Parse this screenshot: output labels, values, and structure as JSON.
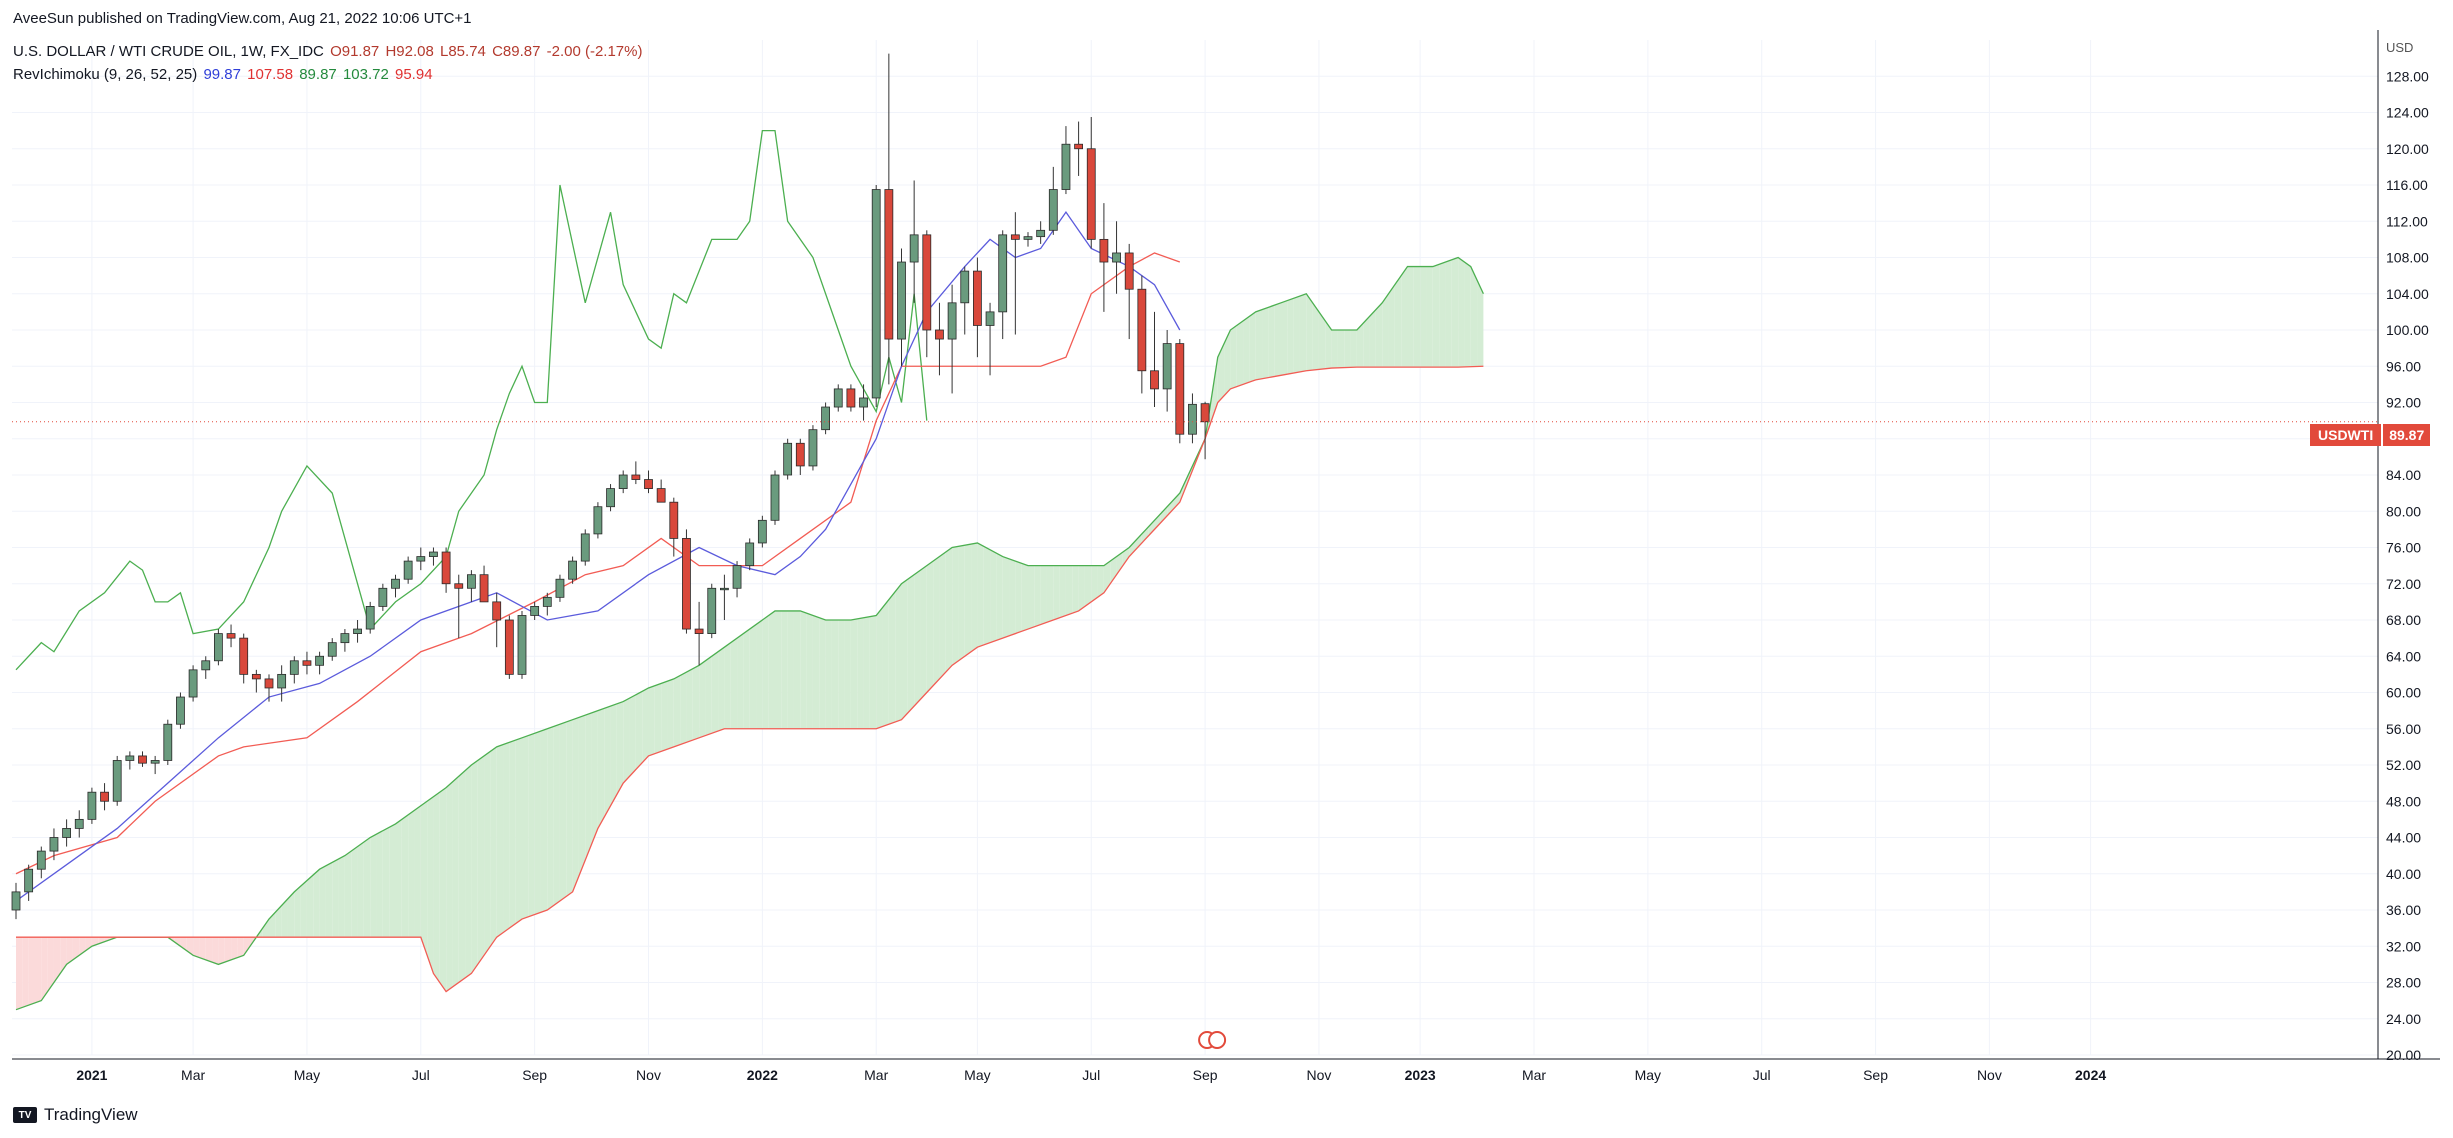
{
  "header": {
    "publish_line": "AveeSun published on TradingView.com, Aug 21, 2022 10:06 UTC+1",
    "symbol": "U.S. DOLLAR / WTI CRUDE OIL, 1W, FX_IDC",
    "open": "O91.87",
    "high": "H92.08",
    "low": "L85.74",
    "close": "C89.87",
    "change": "-2.00 (-2.17%)",
    "indicator_name": "RevIchimoku (9, 26, 52, 25)",
    "ind_v1": "99.87",
    "ind_v2": "107.58",
    "ind_v3": "89.87",
    "ind_v4": "103.72",
    "ind_v5": "95.94"
  },
  "price_axis": {
    "currency": "USD",
    "last_label": "USDWTI",
    "last_value": "89.87"
  },
  "footer": {
    "brand": "TradingView",
    "logo_text": "TV"
  },
  "colors": {
    "candle_up": "#6a9b7e",
    "candle_down": "#d9483b",
    "tenkan": "#5b5bdc",
    "kijun": "#f25c54",
    "span_a": "#4caf50",
    "cloud_bull": "#d4ecd4",
    "cloud_bear": "#fbdada",
    "grid": "#f0f3fa"
  },
  "chart_data": {
    "type": "candlestick",
    "title": "",
    "ylim": [
      20,
      132
    ],
    "y_ticks": [
      20,
      24,
      28,
      32,
      36,
      40,
      44,
      48,
      52,
      56,
      60,
      64,
      68,
      72,
      76,
      80,
      84,
      88,
      92,
      96,
      100,
      104,
      108,
      112,
      116,
      120,
      124,
      128
    ],
    "x_ticks": [
      {
        "label": "2021",
        "week": 6
      },
      {
        "label": "Mar",
        "week": 14
      },
      {
        "label": "May",
        "week": 23
      },
      {
        "label": "Jul",
        "week": 32
      },
      {
        "label": "Sep",
        "week": 41
      },
      {
        "label": "Nov",
        "week": 50
      },
      {
        "label": "2022",
        "week": 59
      },
      {
        "label": "Mar",
        "week": 68
      },
      {
        "label": "May",
        "week": 76
      },
      {
        "label": "Jul",
        "week": 85
      },
      {
        "label": "Sep",
        "week": 94
      },
      {
        "label": "Nov",
        "week": 103
      },
      {
        "label": "2023",
        "week": 111
      },
      {
        "label": "Mar",
        "week": 120
      },
      {
        "label": "May",
        "week": 129
      },
      {
        "label": "Jul",
        "week": 138
      },
      {
        "label": "Sep",
        "week": 147
      },
      {
        "label": "Nov",
        "week": 156
      },
      {
        "label": "2024",
        "week": 164
      }
    ],
    "candles": [
      [
        36,
        39,
        35,
        38
      ],
      [
        38,
        41,
        37,
        40.5
      ],
      [
        40.5,
        43,
        39.5,
        42.5
      ],
      [
        42.5,
        45,
        41.5,
        44
      ],
      [
        44,
        46,
        43,
        45
      ],
      [
        45,
        47,
        44,
        46
      ],
      [
        46,
        49.5,
        45.5,
        49
      ],
      [
        49,
        50,
        47,
        48
      ],
      [
        48,
        53,
        47.5,
        52.5
      ],
      [
        52.5,
        53.5,
        51.5,
        53
      ],
      [
        53,
        53.5,
        51.8,
        52.2
      ],
      [
        52.2,
        53,
        51,
        52.5
      ],
      [
        52.5,
        57,
        52,
        56.5
      ],
      [
        56.5,
        60,
        56,
        59.5
      ],
      [
        59.5,
        63,
        59,
        62.5
      ],
      [
        62.5,
        64,
        61.5,
        63.5
      ],
      [
        63.5,
        67,
        63,
        66.5
      ],
      [
        66.5,
        67.5,
        65,
        66
      ],
      [
        66,
        66.5,
        61,
        62
      ],
      [
        62,
        62.5,
        60,
        61.5
      ],
      [
        61.5,
        62,
        59,
        60.5
      ],
      [
        60.5,
        63,
        59,
        62
      ],
      [
        62,
        64,
        61,
        63.5
      ],
      [
        63.5,
        64.5,
        62,
        63
      ],
      [
        63,
        64.5,
        62,
        64
      ],
      [
        64,
        66,
        63.5,
        65.5
      ],
      [
        65.5,
        67,
        64.5,
        66.5
      ],
      [
        66.5,
        68,
        65.5,
        67
      ],
      [
        67,
        70,
        66.5,
        69.5
      ],
      [
        69.5,
        72,
        69,
        71.5
      ],
      [
        71.5,
        73,
        70.5,
        72.5
      ],
      [
        72.5,
        75,
        72,
        74.5
      ],
      [
        74.5,
        76,
        73.5,
        75
      ],
      [
        75,
        76,
        74,
        75.5
      ],
      [
        75.5,
        76,
        71,
        72
      ],
      [
        72,
        73,
        66,
        71.5
      ],
      [
        71.5,
        73.5,
        70,
        73
      ],
      [
        73,
        74,
        70,
        70
      ],
      [
        70,
        71,
        65,
        68
      ],
      [
        68,
        68.5,
        61.5,
        62
      ],
      [
        62,
        69,
        61.5,
        68.5
      ],
      [
        68.5,
        70,
        68,
        69.5
      ],
      [
        69.5,
        71,
        68.5,
        70.5
      ],
      [
        70.5,
        73,
        70,
        72.5
      ],
      [
        72.5,
        75,
        72,
        74.5
      ],
      [
        74.5,
        78,
        74,
        77.5
      ],
      [
        77.5,
        81,
        77,
        80.5
      ],
      [
        80.5,
        83,
        80,
        82.5
      ],
      [
        82.5,
        84.5,
        82,
        84
      ],
      [
        84,
        85.5,
        83,
        83.5
      ],
      [
        83.5,
        84.5,
        82,
        82.5
      ],
      [
        82.5,
        83.5,
        81,
        81
      ],
      [
        81,
        81.5,
        75,
        77
      ],
      [
        77,
        78,
        66.5,
        67
      ],
      [
        67,
        70,
        63,
        66.5
      ],
      [
        66.5,
        72,
        66,
        71.5
      ],
      [
        71.5,
        73,
        68,
        71.5
      ],
      [
        71.5,
        74.5,
        70.5,
        74
      ],
      [
        74,
        77,
        73.5,
        76.5
      ],
      [
        76.5,
        79.5,
        76,
        79
      ],
      [
        79,
        84.5,
        78.5,
        84
      ],
      [
        84,
        88,
        83.5,
        87.5
      ],
      [
        87.5,
        88,
        84,
        85
      ],
      [
        85,
        89.5,
        84.5,
        89
      ],
      [
        89,
        92,
        88.5,
        91.5
      ],
      [
        91.5,
        94,
        91,
        93.5
      ],
      [
        93.5,
        94,
        91,
        91.5
      ],
      [
        91.5,
        94,
        90,
        92.5
      ],
      [
        92.5,
        116,
        91.5,
        115.5
      ],
      [
        115.5,
        130.5,
        94,
        99
      ],
      [
        99,
        109,
        96,
        107.5
      ],
      [
        107.5,
        116.5,
        103,
        110.5
      ],
      [
        110.5,
        111,
        97,
        100
      ],
      [
        100,
        103,
        95,
        99
      ],
      [
        99,
        105,
        93,
        103
      ],
      [
        103,
        107,
        99.5,
        106.5
      ],
      [
        106.5,
        108,
        97,
        100.5
      ],
      [
        100.5,
        103,
        95,
        102
      ],
      [
        102,
        111,
        99,
        110.5
      ],
      [
        110.5,
        113,
        99.5,
        110
      ],
      [
        110,
        110.8,
        109.2,
        110.3
      ],
      [
        110.3,
        112,
        109.5,
        111
      ],
      [
        111,
        118,
        110.5,
        115.5
      ],
      [
        115.5,
        122.5,
        115,
        120.5
      ],
      [
        120.5,
        123,
        117,
        120
      ],
      [
        120,
        123.5,
        109,
        110
      ],
      [
        110,
        114,
        102,
        107.5
      ],
      [
        107.5,
        112,
        104,
        108.5
      ],
      [
        108.5,
        109.5,
        99,
        104.5
      ],
      [
        104.5,
        106,
        93,
        95.5
      ],
      [
        95.5,
        102,
        91.5,
        93.5
      ],
      [
        93.5,
        100,
        91,
        98.5
      ],
      [
        98.5,
        99,
        87.5,
        88.5
      ],
      [
        88.5,
        93,
        87.5,
        91.8
      ],
      [
        91.87,
        92.08,
        85.74,
        89.87
      ]
    ],
    "tenkan": [
      [
        0,
        37
      ],
      [
        4,
        41
      ],
      [
        8,
        45
      ],
      [
        12,
        50
      ],
      [
        16,
        55
      ],
      [
        20,
        59.5
      ],
      [
        24,
        61
      ],
      [
        28,
        64
      ],
      [
        32,
        68
      ],
      [
        36,
        70
      ],
      [
        38,
        71
      ],
      [
        42,
        68
      ],
      [
        46,
        69
      ],
      [
        50,
        73
      ],
      [
        54,
        76
      ],
      [
        57,
        74
      ],
      [
        60,
        73
      ],
      [
        62,
        75
      ],
      [
        64,
        78
      ],
      [
        66,
        83
      ],
      [
        68,
        88
      ],
      [
        70,
        96
      ],
      [
        72,
        102
      ],
      [
        75,
        107
      ],
      [
        77,
        110
      ],
      [
        79,
        108
      ],
      [
        81,
        109
      ],
      [
        83,
        113
      ],
      [
        85,
        109
      ],
      [
        88,
        107
      ],
      [
        90,
        105
      ],
      [
        92,
        100
      ]
    ],
    "kijun": [
      [
        0,
        40
      ],
      [
        3,
        42
      ],
      [
        8,
        44
      ],
      [
        11,
        48
      ],
      [
        16,
        53
      ],
      [
        18,
        54
      ],
      [
        23,
        55
      ],
      [
        27,
        59
      ],
      [
        32,
        64.5
      ],
      [
        36,
        66.5
      ],
      [
        41,
        70
      ],
      [
        45,
        73
      ],
      [
        48,
        74
      ],
      [
        51,
        77
      ],
      [
        54,
        74
      ],
      [
        59,
        74
      ],
      [
        62,
        77
      ],
      [
        66,
        81
      ],
      [
        68,
        90
      ],
      [
        70,
        96
      ],
      [
        72,
        96
      ],
      [
        75,
        96
      ],
      [
        78,
        96
      ],
      [
        81,
        96
      ],
      [
        83,
        97
      ],
      [
        85,
        104
      ],
      [
        88,
        107
      ],
      [
        90,
        108.5
      ],
      [
        92,
        107.5
      ]
    ],
    "span_a": [
      [
        0,
        62.5
      ],
      [
        2,
        65.5
      ],
      [
        3,
        64.5
      ],
      [
        5,
        69
      ],
      [
        7,
        71
      ],
      [
        9,
        74.5
      ],
      [
        10,
        73.5
      ],
      [
        11,
        70
      ],
      [
        12,
        70
      ],
      [
        13,
        71
      ],
      [
        14,
        66.5
      ],
      [
        16,
        67
      ],
      [
        18,
        70
      ],
      [
        20,
        76
      ],
      [
        21,
        80
      ],
      [
        23,
        85
      ],
      [
        25,
        82
      ],
      [
        28,
        67
      ],
      [
        30,
        70
      ],
      [
        32,
        72
      ],
      [
        34,
        75
      ],
      [
        35,
        80
      ],
      [
        37,
        84
      ],
      [
        38,
        89
      ],
      [
        39,
        93
      ],
      [
        40,
        96
      ],
      [
        41,
        92
      ],
      [
        42,
        92
      ],
      [
        43,
        116
      ],
      [
        45,
        103
      ],
      [
        47,
        113
      ],
      [
        48,
        105
      ],
      [
        50,
        99
      ],
      [
        51,
        98
      ],
      [
        52,
        104
      ],
      [
        53,
        103
      ],
      [
        55,
        110
      ],
      [
        57,
        110
      ],
      [
        58,
        112
      ],
      [
        59,
        122
      ],
      [
        60,
        122
      ],
      [
        61,
        112
      ],
      [
        63,
        108
      ],
      [
        65,
        100
      ],
      [
        66,
        96
      ],
      [
        68,
        91
      ],
      [
        69,
        97
      ],
      [
        70,
        92
      ],
      [
        71,
        104
      ],
      [
        72,
        90
      ]
    ],
    "cloud_a": [
      [
        0,
        25
      ],
      [
        2,
        26
      ],
      [
        4,
        30
      ],
      [
        6,
        32
      ],
      [
        8,
        33
      ],
      [
        10,
        33
      ],
      [
        12,
        33
      ],
      [
        14,
        31
      ],
      [
        16,
        30
      ],
      [
        18,
        31
      ],
      [
        20,
        35
      ],
      [
        22,
        38
      ],
      [
        24,
        40.5
      ],
      [
        26,
        42
      ],
      [
        28,
        44
      ],
      [
        30,
        45.5
      ],
      [
        32,
        47.5
      ],
      [
        34,
        49.5
      ],
      [
        36,
        52
      ],
      [
        38,
        54
      ],
      [
        40,
        55
      ],
      [
        42,
        56
      ],
      [
        44,
        57
      ],
      [
        46,
        58
      ],
      [
        48,
        59
      ],
      [
        50,
        60.5
      ],
      [
        52,
        61.5
      ],
      [
        54,
        63
      ],
      [
        56,
        65
      ],
      [
        58,
        67
      ],
      [
        60,
        69
      ],
      [
        62,
        69
      ],
      [
        64,
        68
      ],
      [
        66,
        68
      ],
      [
        68,
        68.5
      ],
      [
        70,
        72
      ],
      [
        72,
        74
      ],
      [
        74,
        76
      ],
      [
        76,
        76.5
      ],
      [
        78,
        75
      ],
      [
        80,
        74
      ],
      [
        82,
        74
      ],
      [
        84,
        74
      ],
      [
        86,
        74
      ],
      [
        88,
        76
      ],
      [
        90,
        79
      ],
      [
        92,
        82
      ],
      [
        94,
        88
      ],
      [
        95,
        97
      ],
      [
        96,
        100
      ],
      [
        98,
        102
      ],
      [
        100,
        103
      ],
      [
        102,
        104
      ],
      [
        104,
        100
      ],
      [
        106,
        100
      ],
      [
        108,
        103
      ],
      [
        110,
        107
      ],
      [
        112,
        107
      ],
      [
        114,
        108
      ],
      [
        115,
        107
      ],
      [
        116,
        104
      ]
    ],
    "cloud_b": [
      [
        0,
        33
      ],
      [
        10,
        33
      ],
      [
        20,
        33
      ],
      [
        22,
        33
      ],
      [
        32,
        33
      ],
      [
        33,
        29
      ],
      [
        34,
        27
      ],
      [
        36,
        29
      ],
      [
        38,
        33
      ],
      [
        40,
        35
      ],
      [
        42,
        36
      ],
      [
        44,
        38
      ],
      [
        46,
        45
      ],
      [
        48,
        50
      ],
      [
        50,
        53
      ],
      [
        52,
        54
      ],
      [
        54,
        55
      ],
      [
        56,
        56
      ],
      [
        58,
        56
      ],
      [
        60,
        56
      ],
      [
        62,
        56
      ],
      [
        64,
        56
      ],
      [
        66,
        56
      ],
      [
        68,
        56
      ],
      [
        70,
        57
      ],
      [
        72,
        60
      ],
      [
        74,
        63
      ],
      [
        76,
        65
      ],
      [
        78,
        66
      ],
      [
        80,
        67
      ],
      [
        82,
        68
      ],
      [
        84,
        69
      ],
      [
        86,
        71
      ],
      [
        88,
        75
      ],
      [
        90,
        78
      ],
      [
        92,
        81
      ],
      [
        94,
        88
      ],
      [
        95,
        92
      ],
      [
        96,
        93.5
      ],
      [
        98,
        94.5
      ],
      [
        100,
        95
      ],
      [
        102,
        95.5
      ],
      [
        104,
        95.8
      ],
      [
        106,
        95.9
      ],
      [
        108,
        95.9
      ],
      [
        110,
        95.9
      ],
      [
        112,
        95.9
      ],
      [
        114,
        95.9
      ],
      [
        116,
        96
      ]
    ]
  }
}
